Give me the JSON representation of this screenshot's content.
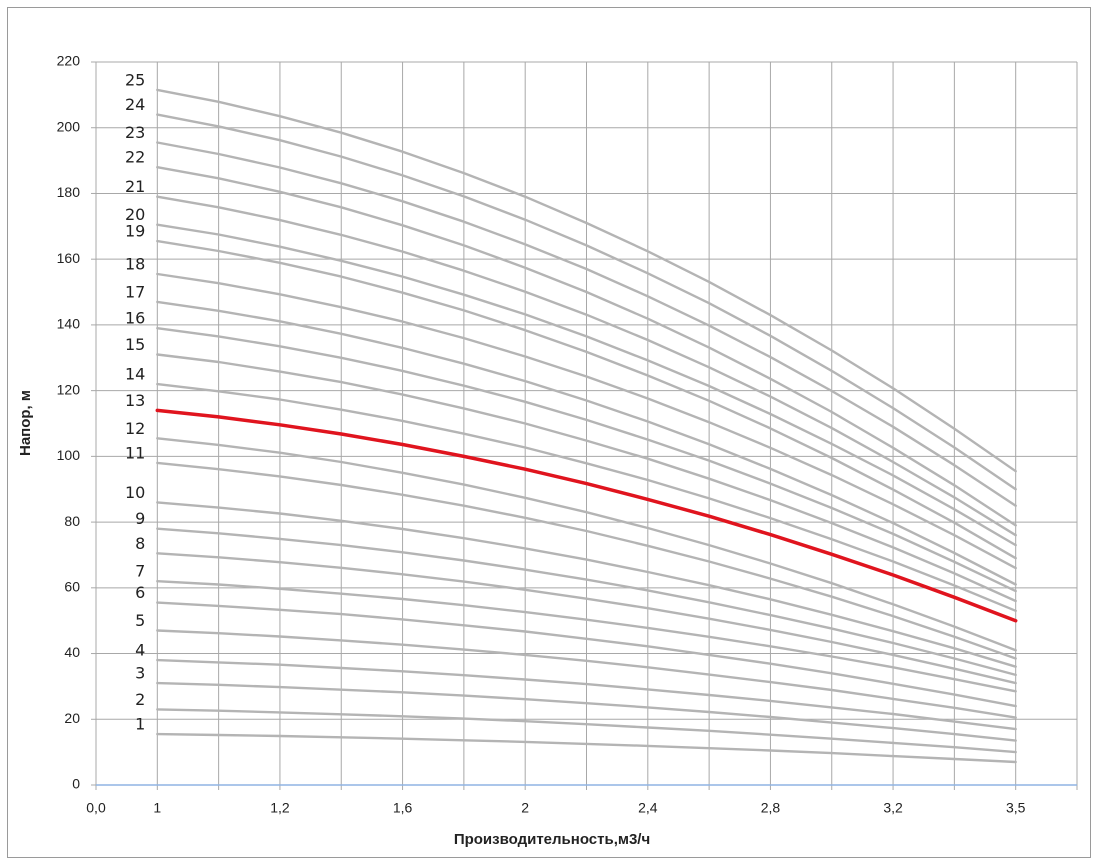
{
  "chart_data": {
    "type": "line",
    "x_label": "Производительность,м3/ч",
    "y_label": "Напор, м",
    "categories": [
      "0,0",
      "1",
      null,
      "1,2",
      null,
      "1,6",
      null,
      "2",
      null,
      "2,4",
      null,
      "2,8",
      null,
      "3,2",
      null,
      "3,5",
      null
    ],
    "ylim": [
      0,
      220
    ],
    "yticks": [
      0,
      20,
      40,
      60,
      80,
      100,
      120,
      140,
      160,
      180,
      200,
      220
    ],
    "grid": true,
    "series": [
      {
        "name": "1",
        "color": "#b4b4b4",
        "values": [
          null,
          15.5,
          15.2,
          14.9,
          14.5,
          14.1,
          13.6,
          13.1,
          12.5,
          11.9,
          11.2,
          10.5,
          9.7,
          8.8,
          7.9,
          7,
          null
        ]
      },
      {
        "name": "2",
        "color": "#b4b4b4",
        "values": [
          null,
          23,
          22.6,
          22.1,
          21.5,
          20.9,
          20.2,
          19.4,
          18.5,
          17.5,
          16.5,
          15.3,
          14.1,
          12.8,
          11.5,
          10,
          null
        ]
      },
      {
        "name": "3",
        "color": "#b4b4b4",
        "values": [
          null,
          31,
          30.5,
          29.8,
          29,
          28.2,
          27.2,
          26.1,
          24.9,
          23.6,
          22.2,
          20.7,
          19,
          17.3,
          15.5,
          13.5,
          null
        ]
      },
      {
        "name": "4",
        "color": "#b4b4b4",
        "values": [
          null,
          38,
          37.3,
          36.6,
          35.6,
          34.6,
          33.4,
          32.1,
          30.7,
          29.1,
          27.4,
          25.6,
          23.6,
          21.6,
          19.3,
          17,
          null
        ]
      },
      {
        "name": "5",
        "color": "#b4b4b4",
        "values": [
          null,
          47,
          46.2,
          45.2,
          44,
          42.7,
          41.2,
          39.6,
          37.8,
          35.8,
          33.6,
          31.3,
          28.9,
          26.2,
          23.5,
          20.5,
          null
        ]
      },
      {
        "name": "6",
        "color": "#b4b4b4",
        "values": [
          null,
          55.5,
          54.5,
          53.3,
          52,
          50.4,
          48.6,
          46.7,
          44.5,
          42.2,
          39.6,
          36.9,
          34,
          30.8,
          27.5,
          24,
          null
        ]
      },
      {
        "name": "7",
        "color": "#b4b4b4",
        "values": [
          null,
          62,
          61,
          59.7,
          58.2,
          56.6,
          54.7,
          52.6,
          50.3,
          47.8,
          45.1,
          42.2,
          39.1,
          35.8,
          32.2,
          28.5,
          null
        ]
      },
      {
        "name": "8",
        "color": "#b4b4b4",
        "values": [
          null,
          70.5,
          69.3,
          67.8,
          66.1,
          64.1,
          61.9,
          59.4,
          56.7,
          53.8,
          50.6,
          47.2,
          43.5,
          39.6,
          35.4,
          31,
          null
        ]
      },
      {
        "name": "9",
        "color": "#b4b4b4",
        "values": [
          null,
          78,
          76.6,
          74.9,
          73,
          70.8,
          68.3,
          65.5,
          62.5,
          59.2,
          55.6,
          51.7,
          47.6,
          43.2,
          38.5,
          33.5,
          null
        ]
      },
      {
        "name": "10",
        "color": "#b4b4b4",
        "values": [
          null,
          86,
          84.4,
          82.6,
          80.4,
          77.9,
          75.1,
          72,
          68.6,
          64.8,
          60.8,
          56.5,
          51.8,
          46.8,
          41.6,
          36,
          null
        ]
      },
      {
        "name": "11",
        "color": "#b4b4b4",
        "values": [
          null,
          98,
          96.1,
          93.9,
          91.3,
          88.3,
          85,
          81.3,
          77.3,
          72.8,
          68,
          62.8,
          57.3,
          51.4,
          45.1,
          38.5,
          null
        ]
      },
      {
        "name": "12",
        "color": "#b4b4b4",
        "values": [
          null,
          105.5,
          103.5,
          101.1,
          98.3,
          95,
          91.4,
          87.4,
          83,
          78.2,
          73,
          67.4,
          61.4,
          55,
          48.2,
          41,
          null
        ]
      },
      {
        "name": "13",
        "color": "#e0141e",
        "values": [
          null,
          114,
          112,
          109.6,
          106.8,
          103.6,
          100,
          96.1,
          91.7,
          86.9,
          81.8,
          76.2,
          70.2,
          63.9,
          57.1,
          50,
          null
        ]
      },
      {
        "name": "14",
        "color": "#b4b4b4",
        "values": [
          null,
          122,
          119.8,
          117.3,
          114.2,
          110.8,
          106.9,
          102.7,
          97.9,
          92.8,
          87.2,
          81.2,
          74.8,
          68,
          60.7,
          53,
          null
        ]
      },
      {
        "name": "15",
        "color": "#b4b4b4",
        "values": [
          null,
          131,
          128.7,
          125.8,
          122.6,
          118.8,
          114.6,
          110,
          104.8,
          99.3,
          93.2,
          86.7,
          79.7,
          72.3,
          64.4,
          56,
          null
        ]
      },
      {
        "name": "16",
        "color": "#b4b4b4",
        "values": [
          null,
          139,
          136.5,
          133.5,
          130,
          126,
          121.5,
          116.6,
          111.1,
          105.1,
          98.7,
          91.7,
          84.3,
          76.4,
          67.9,
          59,
          null
        ]
      },
      {
        "name": "17",
        "color": "#b4b4b4",
        "values": [
          null,
          147,
          144.3,
          141.1,
          137.3,
          133,
          128.2,
          122.9,
          117,
          110.6,
          103.7,
          96.2,
          88.2,
          79.7,
          70.6,
          61,
          null
        ]
      },
      {
        "name": "18",
        "color": "#b4b4b4",
        "values": [
          null,
          155.5,
          152.7,
          149.3,
          145.4,
          141,
          136,
          130.4,
          124.3,
          117.6,
          110.4,
          102.6,
          94.3,
          85.4,
          76,
          66,
          null
        ]
      },
      {
        "name": "19",
        "color": "#b4b4b4",
        "values": [
          null,
          165.5,
          162.5,
          158.9,
          154.7,
          149.8,
          144.4,
          138.4,
          131.8,
          124.6,
          116.9,
          108.5,
          99.5,
          89.9,
          79.8,
          69,
          null
        ]
      },
      {
        "name": "20",
        "color": "#b4b4b4",
        "values": [
          null,
          170.5,
          167.5,
          163.8,
          159.5,
          154.7,
          149.2,
          143.2,
          136.5,
          129.2,
          121.4,
          112.9,
          103.8,
          94.2,
          83.9,
          73,
          null
        ]
      },
      {
        "name": "21",
        "color": "#b4b4b4",
        "values": [
          null,
          179,
          175.8,
          171.9,
          167.4,
          162.3,
          156.5,
          150.1,
          143.1,
          135.4,
          127.1,
          118.2,
          108.6,
          98.3,
          87.5,
          76,
          null
        ]
      },
      {
        "name": "22",
        "color": "#b4b4b4",
        "values": [
          null,
          188,
          184.6,
          180.5,
          175.8,
          170.3,
          164.2,
          157.4,
          150,
          141.9,
          133.1,
          123.6,
          113.5,
          102.6,
          91.2,
          79,
          null
        ]
      },
      {
        "name": "23",
        "color": "#b4b4b4",
        "values": [
          null,
          195.5,
          192,
          187.9,
          183.1,
          177.6,
          171.4,
          164.5,
          157,
          148.7,
          139.8,
          130.2,
          119.9,
          109,
          97.3,
          85,
          null
        ]
      },
      {
        "name": "24",
        "color": "#b4b4b4",
        "values": [
          null,
          204,
          200.4,
          196.2,
          191.2,
          185.5,
          179.1,
          172,
          164.2,
          155.7,
          146.6,
          136.7,
          126,
          114.7,
          102.7,
          90,
          null
        ]
      },
      {
        "name": "25",
        "color": "#b4b4b4",
        "values": [
          null,
          211.5,
          207.9,
          203.5,
          198.5,
          192.7,
          186.2,
          179,
          171,
          162.4,
          153.1,
          143,
          132.2,
          120.7,
          108.4,
          95.5,
          null
        ]
      }
    ]
  }
}
